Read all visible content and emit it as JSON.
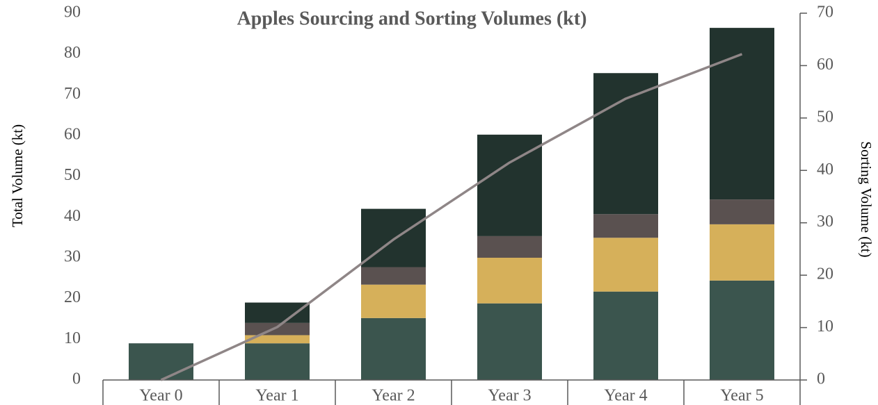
{
  "chart_data": {
    "type": "bar",
    "stacked": true,
    "title": "Apples Sourcing and Sorting Volumes (kt)",
    "ylabel": "Total Volume (kt)",
    "y2label": "Sorting Volume (kt)",
    "categories": [
      "Year 0",
      "Year 1",
      "Year 2",
      "Year 3",
      "Year 4",
      "Year 5"
    ],
    "series": [
      {
        "color": "#3b554e",
        "values": [
          9,
          9,
          15.2,
          18.8,
          21.7,
          24.4
        ]
      },
      {
        "color": "#d6b05a",
        "values": [
          0,
          2,
          8.2,
          11.2,
          13.2,
          13.8
        ]
      },
      {
        "color": "#5a5150",
        "values": [
          0,
          3,
          4.3,
          5.3,
          5.8,
          6.1
        ]
      },
      {
        "color": "#22332e",
        "values": [
          0,
          5,
          14.3,
          24.9,
          34.6,
          42.1
        ]
      },
      {
        "type": "line",
        "axis": "y2",
        "color": "#8f8687",
        "values": [
          0,
          10.1,
          26.8,
          41.5,
          53.7,
          62.2
        ]
      }
    ],
    "ylim": [
      0,
      90
    ],
    "yticks": [
      0,
      10,
      20,
      30,
      40,
      50,
      60,
      70,
      80,
      90
    ],
    "y2lim": [
      0,
      70
    ],
    "y2ticks": [
      0,
      10,
      20,
      30,
      40,
      50,
      60,
      70
    ]
  }
}
